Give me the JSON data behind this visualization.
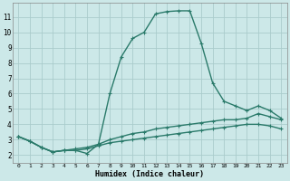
{
  "background_color": "#cce8e8",
  "grid_color": "#aacccc",
  "line_color": "#2a7a6a",
  "xlabel": "Humidex (Indice chaleur)",
  "xlim": [
    -0.5,
    23.5
  ],
  "ylim": [
    1.5,
    11.9
  ],
  "yticks": [
    2,
    3,
    4,
    5,
    6,
    7,
    8,
    9,
    10,
    11
  ],
  "xticks": [
    0,
    1,
    2,
    3,
    4,
    5,
    6,
    7,
    8,
    9,
    10,
    11,
    12,
    13,
    14,
    15,
    16,
    17,
    18,
    19,
    20,
    21,
    22,
    23
  ],
  "line1_x": [
    0,
    1,
    2,
    3,
    4,
    5,
    6,
    7,
    8,
    9,
    10,
    11,
    12,
    13,
    14,
    15,
    16,
    17,
    18,
    19,
    20,
    21,
    22,
    23
  ],
  "line1_y": [
    3.2,
    2.9,
    2.5,
    2.2,
    2.3,
    2.3,
    2.4,
    2.6,
    2.8,
    2.9,
    3.0,
    3.1,
    3.2,
    3.3,
    3.4,
    3.5,
    3.6,
    3.7,
    3.8,
    3.9,
    4.0,
    4.0,
    3.9,
    3.7
  ],
  "line2_x": [
    0,
    1,
    2,
    3,
    4,
    5,
    6,
    7,
    8,
    9,
    10,
    11,
    12,
    13,
    14,
    15,
    16,
    17,
    18,
    19,
    20,
    21,
    22,
    23
  ],
  "line2_y": [
    3.2,
    2.9,
    2.5,
    2.2,
    2.3,
    2.3,
    2.1,
    2.7,
    3.0,
    3.2,
    3.4,
    3.5,
    3.7,
    3.8,
    3.9,
    4.0,
    4.1,
    4.2,
    4.3,
    4.3,
    4.4,
    4.7,
    4.5,
    4.3
  ],
  "line3_x": [
    0,
    1,
    2,
    3,
    4,
    5,
    6,
    7,
    8,
    9,
    10,
    11,
    12,
    13,
    14,
    15,
    16,
    17,
    18,
    19,
    20,
    21,
    22,
    23
  ],
  "line3_y": [
    3.2,
    2.9,
    2.5,
    2.2,
    2.3,
    2.4,
    2.5,
    2.7,
    6.0,
    8.4,
    9.6,
    10.0,
    11.2,
    11.35,
    11.4,
    11.4,
    9.3,
    6.7,
    5.5,
    5.2,
    4.9,
    5.2,
    4.9,
    4.4
  ],
  "marker_style": "+",
  "marker_size": 3,
  "line_width": 1.0
}
